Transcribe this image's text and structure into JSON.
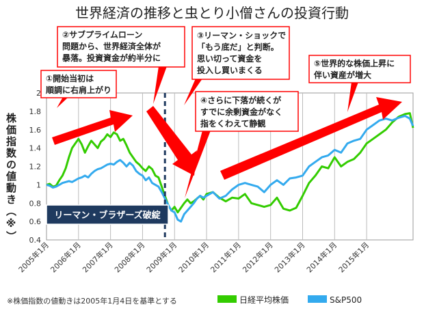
{
  "colors": {
    "nikkei": "#33cc00",
    "sp500": "#33aaee",
    "arrow": "#ff0000",
    "callout_border": "#ff0000",
    "grid": "#bbbbbb",
    "dark_box": "#1f3a5f"
  },
  "chart_data": {
    "type": "line",
    "title": "世界経済の推移と虫とり小僧さんの投資行動",
    "ylabel": "株価指数の値動き（※）",
    "ylim": [
      0.4,
      2.0
    ],
    "yticks": [
      "0.4",
      "0.6",
      "0.8",
      "1",
      "1.2",
      "1.4",
      "1.6",
      "1.8",
      "2"
    ],
    "xlim": [
      2005.0,
      2016.45
    ],
    "xticks": [
      "2005年1月",
      "2006年1月",
      "2007年1月",
      "2008年1月",
      "2009年1月",
      "2010年1月",
      "2011年1月",
      "2012年1月",
      "2013年1月",
      "2014年1月",
      "2015年1月"
    ],
    "grid": "vertical",
    "legend_position": "bottom-right",
    "series": [
      {
        "name": "日経平均株価",
        "color": "#33cc00",
        "x": [
          2005.0,
          2005.1,
          2005.2,
          2005.3,
          2005.4,
          2005.5,
          2005.6,
          2005.7,
          2005.8,
          2005.9,
          2006.0,
          2006.1,
          2006.2,
          2006.3,
          2006.4,
          2006.5,
          2006.6,
          2006.7,
          2006.8,
          2006.9,
          2007.0,
          2007.1,
          2007.2,
          2007.3,
          2007.4,
          2007.5,
          2007.6,
          2007.7,
          2007.8,
          2007.9,
          2008.0,
          2008.1,
          2008.2,
          2008.3,
          2008.4,
          2008.5,
          2008.6,
          2008.7,
          2008.8,
          2008.9,
          2009.0,
          2009.1,
          2009.2,
          2009.3,
          2009.4,
          2009.5,
          2009.6,
          2009.7,
          2009.8,
          2009.9,
          2010.0,
          2010.2,
          2010.4,
          2010.6,
          2010.8,
          2011.0,
          2011.2,
          2011.4,
          2011.6,
          2011.8,
          2012.0,
          2012.2,
          2012.4,
          2012.6,
          2012.8,
          2013.0,
          2013.2,
          2013.4,
          2013.6,
          2013.8,
          2014.0,
          2014.2,
          2014.4,
          2014.6,
          2014.8,
          2015.0,
          2015.2,
          2015.4,
          2015.6,
          2015.8,
          2016.0,
          2016.2,
          2016.35,
          2016.45
        ],
        "values": [
          1.0,
          1.01,
          0.98,
          0.99,
          1.05,
          1.1,
          1.18,
          1.3,
          1.4,
          1.45,
          1.5,
          1.44,
          1.35,
          1.42,
          1.48,
          1.44,
          1.4,
          1.47,
          1.5,
          1.55,
          1.52,
          1.57,
          1.55,
          1.48,
          1.5,
          1.43,
          1.35,
          1.3,
          1.25,
          1.22,
          1.18,
          1.15,
          1.2,
          1.17,
          1.1,
          1.08,
          0.98,
          0.88,
          0.78,
          0.72,
          0.76,
          0.7,
          0.75,
          0.8,
          0.84,
          0.8,
          0.82,
          0.85,
          0.88,
          0.84,
          0.9,
          0.92,
          0.86,
          0.82,
          0.86,
          0.85,
          0.9,
          0.8,
          0.78,
          0.76,
          0.78,
          0.86,
          0.74,
          0.72,
          0.75,
          0.88,
          1.02,
          1.1,
          1.2,
          1.18,
          1.3,
          1.2,
          1.25,
          1.28,
          1.35,
          1.45,
          1.5,
          1.55,
          1.6,
          1.68,
          1.74,
          1.77,
          1.78,
          1.62
        ]
      },
      {
        "name": "S&P500",
        "color": "#33aaee",
        "x": [
          2005.0,
          2005.1,
          2005.2,
          2005.3,
          2005.4,
          2005.5,
          2005.6,
          2005.7,
          2005.8,
          2005.9,
          2006.0,
          2006.1,
          2006.2,
          2006.3,
          2006.4,
          2006.5,
          2006.6,
          2006.7,
          2006.8,
          2006.9,
          2007.0,
          2007.1,
          2007.2,
          2007.3,
          2007.4,
          2007.5,
          2007.6,
          2007.7,
          2007.8,
          2007.9,
          2008.0,
          2008.1,
          2008.2,
          2008.3,
          2008.4,
          2008.5,
          2008.6,
          2008.7,
          2008.8,
          2008.9,
          2009.0,
          2009.1,
          2009.2,
          2009.3,
          2009.4,
          2009.5,
          2009.6,
          2009.7,
          2009.8,
          2009.9,
          2010.0,
          2010.2,
          2010.4,
          2010.6,
          2010.8,
          2011.0,
          2011.2,
          2011.4,
          2011.6,
          2011.8,
          2012.0,
          2012.2,
          2012.4,
          2012.6,
          2012.8,
          2013.0,
          2013.2,
          2013.4,
          2013.6,
          2013.8,
          2014.0,
          2014.2,
          2014.4,
          2014.6,
          2014.8,
          2015.0,
          2015.2,
          2015.4,
          2015.6,
          2015.8,
          2016.0,
          2016.2,
          2016.35,
          2016.45
        ],
        "values": [
          1.0,
          0.99,
          0.97,
          0.98,
          1.0,
          1.02,
          1.03,
          1.04,
          1.03,
          1.05,
          1.07,
          1.08,
          1.1,
          1.08,
          1.12,
          1.15,
          1.17,
          1.18,
          1.2,
          1.22,
          1.23,
          1.22,
          1.25,
          1.27,
          1.24,
          1.2,
          1.24,
          1.21,
          1.15,
          1.12,
          1.1,
          1.05,
          1.08,
          1.02,
          1.0,
          0.98,
          0.92,
          0.85,
          0.78,
          0.72,
          0.7,
          0.62,
          0.6,
          0.68,
          0.72,
          0.76,
          0.8,
          0.85,
          0.88,
          0.86,
          0.88,
          0.92,
          0.85,
          0.88,
          0.95,
          1.0,
          1.02,
          1.0,
          0.98,
          0.92,
          1.0,
          1.05,
          1.0,
          1.07,
          1.08,
          1.1,
          1.2,
          1.25,
          1.3,
          1.32,
          1.38,
          1.35,
          1.45,
          1.48,
          1.5,
          1.6,
          1.65,
          1.7,
          1.72,
          1.7,
          1.73,
          1.75,
          1.72,
          1.64
        ]
      }
    ]
  },
  "lehman_line": {
    "x": 2008.7
  },
  "lehman_box": {
    "label": "リーマン・ブラザーズ破綻"
  },
  "callouts": [
    {
      "id": "c1",
      "lines": [
        "①開始当初は",
        "順調に右肩上がり"
      ]
    },
    {
      "id": "c2",
      "lines": [
        "②サブプライムローン",
        "問題から、世界経済全体が",
        "暴落。投資資金が約半分に"
      ]
    },
    {
      "id": "c3",
      "lines": [
        "③リーマン・ショックで",
        "「もう底だ」と判断。",
        "思い切って資金を",
        "投入し買いまくる"
      ]
    },
    {
      "id": "c4",
      "lines": [
        "④さらに下落が続くが",
        "すでに余剰資金がなく",
        "指をくわえて静観"
      ]
    },
    {
      "id": "c5",
      "lines": [
        "⑤世界的な株価上昇に",
        "伴い資産が増大"
      ]
    }
  ],
  "footnote": "※株価指数の値動きは2005年1月4日を基準とする",
  "legend": [
    {
      "label": "日経平均株価",
      "color": "#33cc00"
    },
    {
      "label": "S&P500",
      "color": "#33aaee"
    }
  ]
}
